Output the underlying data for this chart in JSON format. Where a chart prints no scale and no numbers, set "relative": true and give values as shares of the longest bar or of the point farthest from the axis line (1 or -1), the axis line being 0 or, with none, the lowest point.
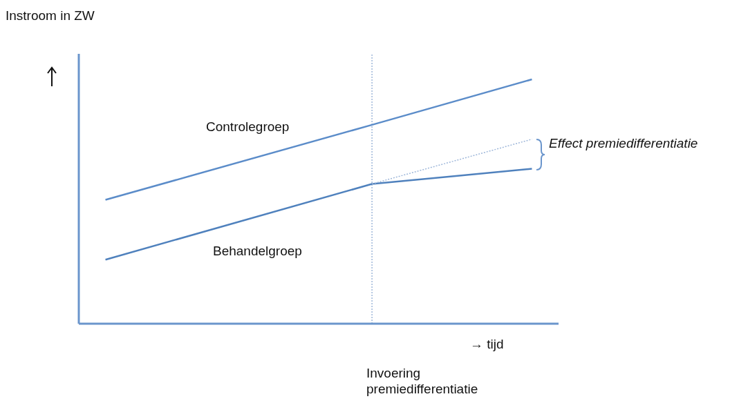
{
  "chart_data": {
    "type": "line",
    "relative": true,
    "ylabel": "Instroom in ZW",
    "xlabel": "→ tijd",
    "categories": [
      null,
      null,
      null,
      null,
      null,
      null,
      null,
      null,
      null
    ],
    "series": [
      {
        "name": "Controlegroep",
        "color": "#5b8cc9",
        "line_style": "solid",
        "values": [
          0.507,
          null,
          null,
          null,
          null,
          0.814,
          null,
          null,
          1
        ]
      },
      {
        "name": "Behandelgroep",
        "color": "#4f81bd",
        "line_style": "solid",
        "values": [
          0.262,
          null,
          null,
          null,
          null,
          0.572,
          null,
          null,
          0.634
        ]
      },
      {
        "color": "#9db6d9",
        "line_style": "dotted",
        "values": [
          null,
          null,
          null,
          null,
          null,
          0.572,
          null,
          null,
          0.755
        ]
      }
    ],
    "annotations": [
      "Effect premiedifferentiatie",
      "Invoering premiedifferentiatie"
    ],
    "grid": false,
    "legend": false,
    "marker": "none"
  }
}
